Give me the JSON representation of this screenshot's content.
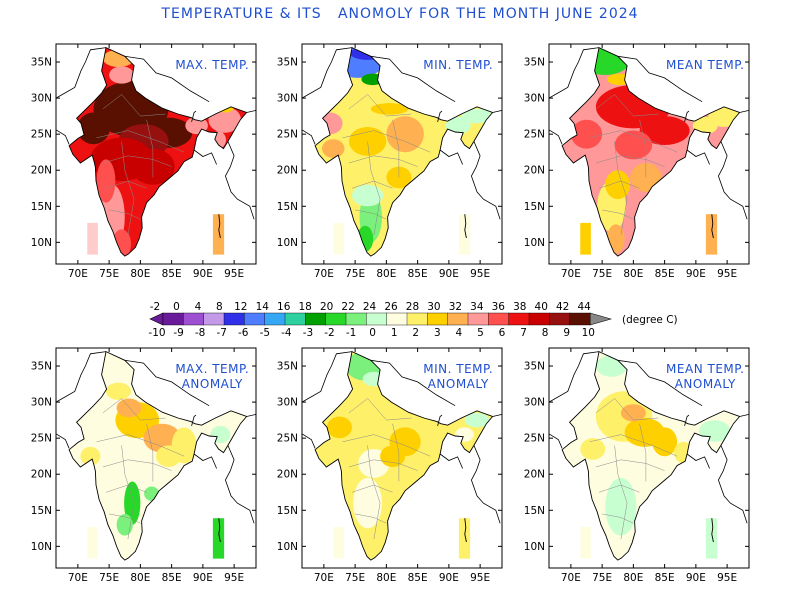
{
  "title": "TEMPERATURE & ITS   ANOMOLY FOR THE MONTH JUNE 2024",
  "axes": {
    "lat_labels": [
      "35N",
      "30N",
      "25N",
      "20N",
      "15N",
      "10N"
    ],
    "lon_labels": [
      "70E",
      "75E",
      "80E",
      "85E",
      "90E",
      "95E"
    ]
  },
  "panels": [
    {
      "id": "max-temp",
      "label_lines": [
        "MAX. TEMP."
      ],
      "fill": "max"
    },
    {
      "id": "min-temp",
      "label_lines": [
        "MIN. TEMP."
      ],
      "fill": "min"
    },
    {
      "id": "mean-temp",
      "label_lines": [
        "MEAN TEMP."
      ],
      "fill": "mean"
    },
    {
      "id": "max-temp-anomaly",
      "label_lines": [
        "MAX. TEMP.",
        "ANOMALY"
      ],
      "fill": "amax"
    },
    {
      "id": "min-temp-anomaly",
      "label_lines": [
        "MIN. TEMP.",
        "ANOMALY"
      ],
      "fill": "amin"
    },
    {
      "id": "mean-temp-anomaly",
      "label_lines": [
        "MEAN TEMP.",
        "ANOMALY"
      ],
      "fill": "amean"
    }
  ],
  "colorbar": {
    "top_labels": [
      "-2",
      "0",
      "4",
      "8",
      "12",
      "14",
      "16",
      "18",
      "20",
      "22",
      "24",
      "26",
      "28",
      "30",
      "32",
      "34",
      "36",
      "38",
      "40",
      "42",
      "44"
    ],
    "bottom_labels": [
      "-10",
      "-9",
      "-8",
      "-7",
      "-6",
      "-5",
      "-4",
      "-3",
      "-2",
      "-1",
      "0",
      "1",
      "2",
      "3",
      "4",
      "5",
      "6",
      "7",
      "8",
      "9",
      "10"
    ],
    "colors": [
      "#6a1b9a",
      "#9c4fd0",
      "#c49ae8",
      "#3030e8",
      "#4f7dff",
      "#35a7f5",
      "#2fd0a0",
      "#00a000",
      "#28d828",
      "#7cf07c",
      "#c8ffd0",
      "#fffde0",
      "#fff06a",
      "#ffd000",
      "#ffb050",
      "#ff9999",
      "#ff5050",
      "#ee1111",
      "#c80000",
      "#961010",
      "#5a1000"
    ],
    "unit": "(degree C)"
  }
}
